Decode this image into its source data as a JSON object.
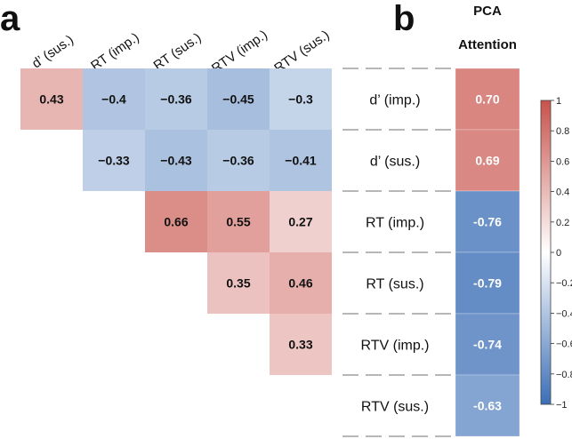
{
  "panel_labels": {
    "a": "a",
    "b": "b"
  },
  "colorbar_ticks": [
    "1",
    "0.8",
    "0.6",
    "0.4",
    "0.2",
    "0",
    "−0.2",
    "−0.4",
    "−0.6",
    "−0.8",
    "−1"
  ],
  "colorbar_range": [
    -1,
    1
  ],
  "colors": {
    "negative": "#3b6fb6",
    "neutral": "#ffffff",
    "positive": "#c8524b",
    "dash": "#8c8c8c",
    "text": "#111111"
  },
  "chart_data": [
    {
      "type": "heatmap",
      "title": "",
      "panel": "a",
      "columns": [
        "d’ (sus.)",
        "RT (imp.)",
        "RT (sus.)",
        "RTV (imp.)",
        "RTV (sus.)"
      ],
      "rows": [
        "d’ (imp.)",
        "d’ (sus.)",
        "RT (imp.)",
        "RT (sus.)",
        "RTV (imp.)",
        "RTV (sus.)"
      ],
      "cells": [
        {
          "row": 0,
          "col": 0,
          "value": 0.43,
          "label": "0.43"
        },
        {
          "row": 0,
          "col": 1,
          "value": -0.4,
          "label": "−0.4"
        },
        {
          "row": 0,
          "col": 2,
          "value": -0.36,
          "label": "−0.36"
        },
        {
          "row": 0,
          "col": 3,
          "value": -0.45,
          "label": "−0.45"
        },
        {
          "row": 0,
          "col": 4,
          "value": -0.3,
          "label": "−0.3"
        },
        {
          "row": 1,
          "col": 1,
          "value": -0.33,
          "label": "−0.33"
        },
        {
          "row": 1,
          "col": 2,
          "value": -0.43,
          "label": "−0.43"
        },
        {
          "row": 1,
          "col": 3,
          "value": -0.36,
          "label": "−0.36"
        },
        {
          "row": 1,
          "col": 4,
          "value": -0.41,
          "label": "−0.41"
        },
        {
          "row": 2,
          "col": 2,
          "value": 0.66,
          "label": "0.66"
        },
        {
          "row": 2,
          "col": 3,
          "value": 0.55,
          "label": "0.55"
        },
        {
          "row": 2,
          "col": 4,
          "value": 0.27,
          "label": "0.27"
        },
        {
          "row": 3,
          "col": 3,
          "value": 0.35,
          "label": "0.35"
        },
        {
          "row": 3,
          "col": 4,
          "value": 0.46,
          "label": "0.46"
        },
        {
          "row": 4,
          "col": 4,
          "value": 0.33,
          "label": "0.33"
        }
      ],
      "zlim": [
        -1,
        1
      ]
    },
    {
      "type": "heatmap",
      "panel": "b",
      "title": "PCA Attention",
      "title_lines": [
        "PCA",
        "Attention"
      ],
      "rows": [
        "d’ (imp.)",
        "d’ (sus.)",
        "RT (imp.)",
        "RT (sus.)",
        "RTV (imp.)",
        "RTV (sus.)"
      ],
      "values": [
        0.7,
        0.69,
        -0.76,
        -0.79,
        -0.74,
        -0.63
      ],
      "labels": [
        "0.70",
        "0.69",
        "-0.76",
        "-0.79",
        "-0.74",
        "-0.63"
      ],
      "zlim": [
        -1,
        1
      ]
    }
  ]
}
